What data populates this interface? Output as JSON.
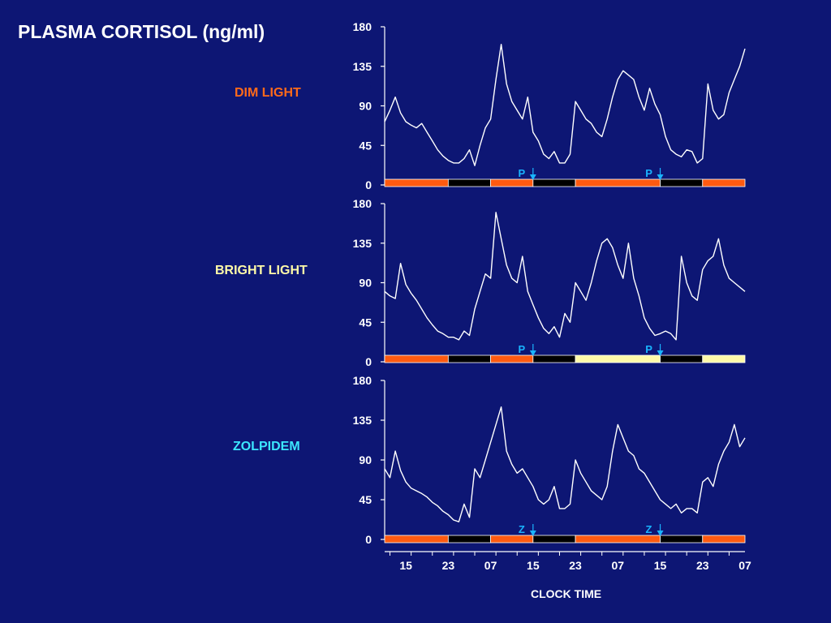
{
  "title": "PLASMA CORTISOL (ng/ml)",
  "colors": {
    "background": "#0d1674",
    "trace": "#ffffff",
    "light_period": "#ff5a10",
    "bright_light_period": "#fffaa8",
    "dark_period": "#000000",
    "marker": "#19b4ff"
  },
  "chart_data": {
    "type": "line",
    "xlabel": "CLOCK TIME",
    "x_tick_labels": [
      "15",
      "23",
      "07",
      "15",
      "23",
      "07",
      "15",
      "23",
      "07"
    ],
    "x_range_hours": [
      11,
      79
    ],
    "shared_y_ticks": [
      "0",
      "45",
      "90",
      "135",
      "180"
    ],
    "ylim": [
      0,
      180
    ],
    "panels": [
      {
        "label": "DIM LIGHT",
        "label_color": "#ff6a1a",
        "marker_letter": "P",
        "marker_x_hours": [
          39,
          63
        ],
        "bar_segments": [
          {
            "start": 11,
            "end": 23,
            "kind": "light"
          },
          {
            "start": 23,
            "end": 31,
            "kind": "dark"
          },
          {
            "start": 31,
            "end": 39,
            "kind": "light"
          },
          {
            "start": 39,
            "end": 47,
            "kind": "dark"
          },
          {
            "start": 47,
            "end": 63,
            "kind": "light"
          },
          {
            "start": 63,
            "end": 71,
            "kind": "dark"
          },
          {
            "start": 71,
            "end": 79,
            "kind": "light"
          }
        ],
        "x": [
          11,
          12,
          13,
          14,
          15,
          16,
          17,
          18,
          19,
          20,
          21,
          22,
          23,
          24,
          25,
          26,
          27,
          28,
          29,
          30,
          31,
          32,
          33,
          34,
          35,
          36,
          37,
          38,
          39,
          40,
          41,
          42,
          43,
          44,
          45,
          46,
          47,
          48,
          49,
          50,
          51,
          52,
          53,
          54,
          55,
          56,
          57,
          58,
          59,
          60,
          61,
          62,
          63,
          64,
          65,
          66,
          67,
          68,
          69,
          70,
          71,
          72,
          73,
          74,
          75,
          76,
          77,
          78,
          79
        ],
        "y": [
          72,
          85,
          100,
          82,
          72,
          68,
          65,
          70,
          60,
          50,
          40,
          33,
          28,
          25,
          25,
          30,
          40,
          22,
          45,
          65,
          75,
          120,
          160,
          115,
          95,
          85,
          75,
          100,
          60,
          50,
          35,
          30,
          38,
          25,
          25,
          35,
          95,
          85,
          75,
          70,
          60,
          55,
          75,
          100,
          120,
          130,
          125,
          120,
          100,
          85,
          110,
          92,
          80,
          55,
          40,
          35,
          32,
          40,
          38,
          25,
          30,
          115,
          85,
          75,
          80,
          105,
          120,
          135,
          155
        ]
      },
      {
        "label": "BRIGHT LIGHT",
        "label_color": "#fffaa8",
        "marker_letter": "P",
        "marker_x_hours": [
          39,
          63
        ],
        "bar_segments": [
          {
            "start": 11,
            "end": 23,
            "kind": "light"
          },
          {
            "start": 23,
            "end": 31,
            "kind": "dark"
          },
          {
            "start": 31,
            "end": 39,
            "kind": "light"
          },
          {
            "start": 39,
            "end": 47,
            "kind": "dark"
          },
          {
            "start": 47,
            "end": 63,
            "kind": "bright"
          },
          {
            "start": 63,
            "end": 71,
            "kind": "dark"
          },
          {
            "start": 71,
            "end": 79,
            "kind": "bright"
          }
        ],
        "x": [
          11,
          12,
          13,
          14,
          15,
          16,
          17,
          18,
          19,
          20,
          21,
          22,
          23,
          24,
          25,
          26,
          27,
          28,
          29,
          30,
          31,
          32,
          33,
          34,
          35,
          36,
          37,
          38,
          39,
          40,
          41,
          42,
          43,
          44,
          45,
          46,
          47,
          48,
          49,
          50,
          51,
          52,
          53,
          54,
          55,
          56,
          57,
          58,
          59,
          60,
          61,
          62,
          63,
          64,
          65,
          66,
          67,
          68,
          69,
          70,
          71,
          72,
          73,
          74,
          75,
          76,
          77,
          78,
          79
        ],
        "y": [
          80,
          75,
          72,
          112,
          88,
          78,
          70,
          60,
          50,
          42,
          35,
          32,
          28,
          28,
          25,
          35,
          30,
          60,
          80,
          100,
          95,
          170,
          140,
          110,
          95,
          90,
          120,
          80,
          65,
          50,
          38,
          32,
          40,
          28,
          55,
          45,
          90,
          80,
          70,
          90,
          115,
          135,
          140,
          130,
          110,
          95,
          135,
          95,
          75,
          50,
          38,
          30,
          32,
          35,
          32,
          25,
          120,
          90,
          75,
          70,
          105,
          115,
          120,
          140,
          110,
          95,
          90,
          85,
          80
        ]
      },
      {
        "label": "ZOLPIDEM",
        "label_color": "#3ce6ff",
        "marker_letter": "Z",
        "marker_x_hours": [
          39,
          63
        ],
        "bar_segments": [
          {
            "start": 11,
            "end": 23,
            "kind": "light"
          },
          {
            "start": 23,
            "end": 31,
            "kind": "dark"
          },
          {
            "start": 31,
            "end": 39,
            "kind": "light"
          },
          {
            "start": 39,
            "end": 47,
            "kind": "dark"
          },
          {
            "start": 47,
            "end": 63,
            "kind": "light"
          },
          {
            "start": 63,
            "end": 71,
            "kind": "dark"
          },
          {
            "start": 71,
            "end": 79,
            "kind": "light"
          }
        ],
        "x": [
          11,
          12,
          13,
          14,
          15,
          16,
          17,
          18,
          19,
          20,
          21,
          22,
          23,
          24,
          25,
          26,
          27,
          28,
          29,
          30,
          31,
          32,
          33,
          34,
          35,
          36,
          37,
          38,
          39,
          40,
          41,
          42,
          43,
          44,
          45,
          46,
          47,
          48,
          49,
          50,
          51,
          52,
          53,
          54,
          55,
          56,
          57,
          58,
          59,
          60,
          61,
          62,
          63,
          64,
          65,
          66,
          67,
          68,
          69,
          70,
          71,
          72,
          73,
          74,
          75,
          76,
          77,
          78,
          79
        ],
        "y": [
          80,
          70,
          100,
          78,
          65,
          58,
          55,
          52,
          48,
          42,
          38,
          32,
          28,
          22,
          20,
          40,
          25,
          80,
          70,
          90,
          110,
          130,
          150,
          100,
          85,
          75,
          80,
          70,
          60,
          45,
          40,
          45,
          60,
          35,
          35,
          40,
          90,
          75,
          65,
          55,
          50,
          45,
          60,
          100,
          130,
          115,
          100,
          95,
          80,
          75,
          65,
          55,
          45,
          40,
          35,
          40,
          30,
          35,
          35,
          30,
          65,
          70,
          60,
          85,
          100,
          110,
          130,
          105,
          115
        ]
      }
    ]
  }
}
